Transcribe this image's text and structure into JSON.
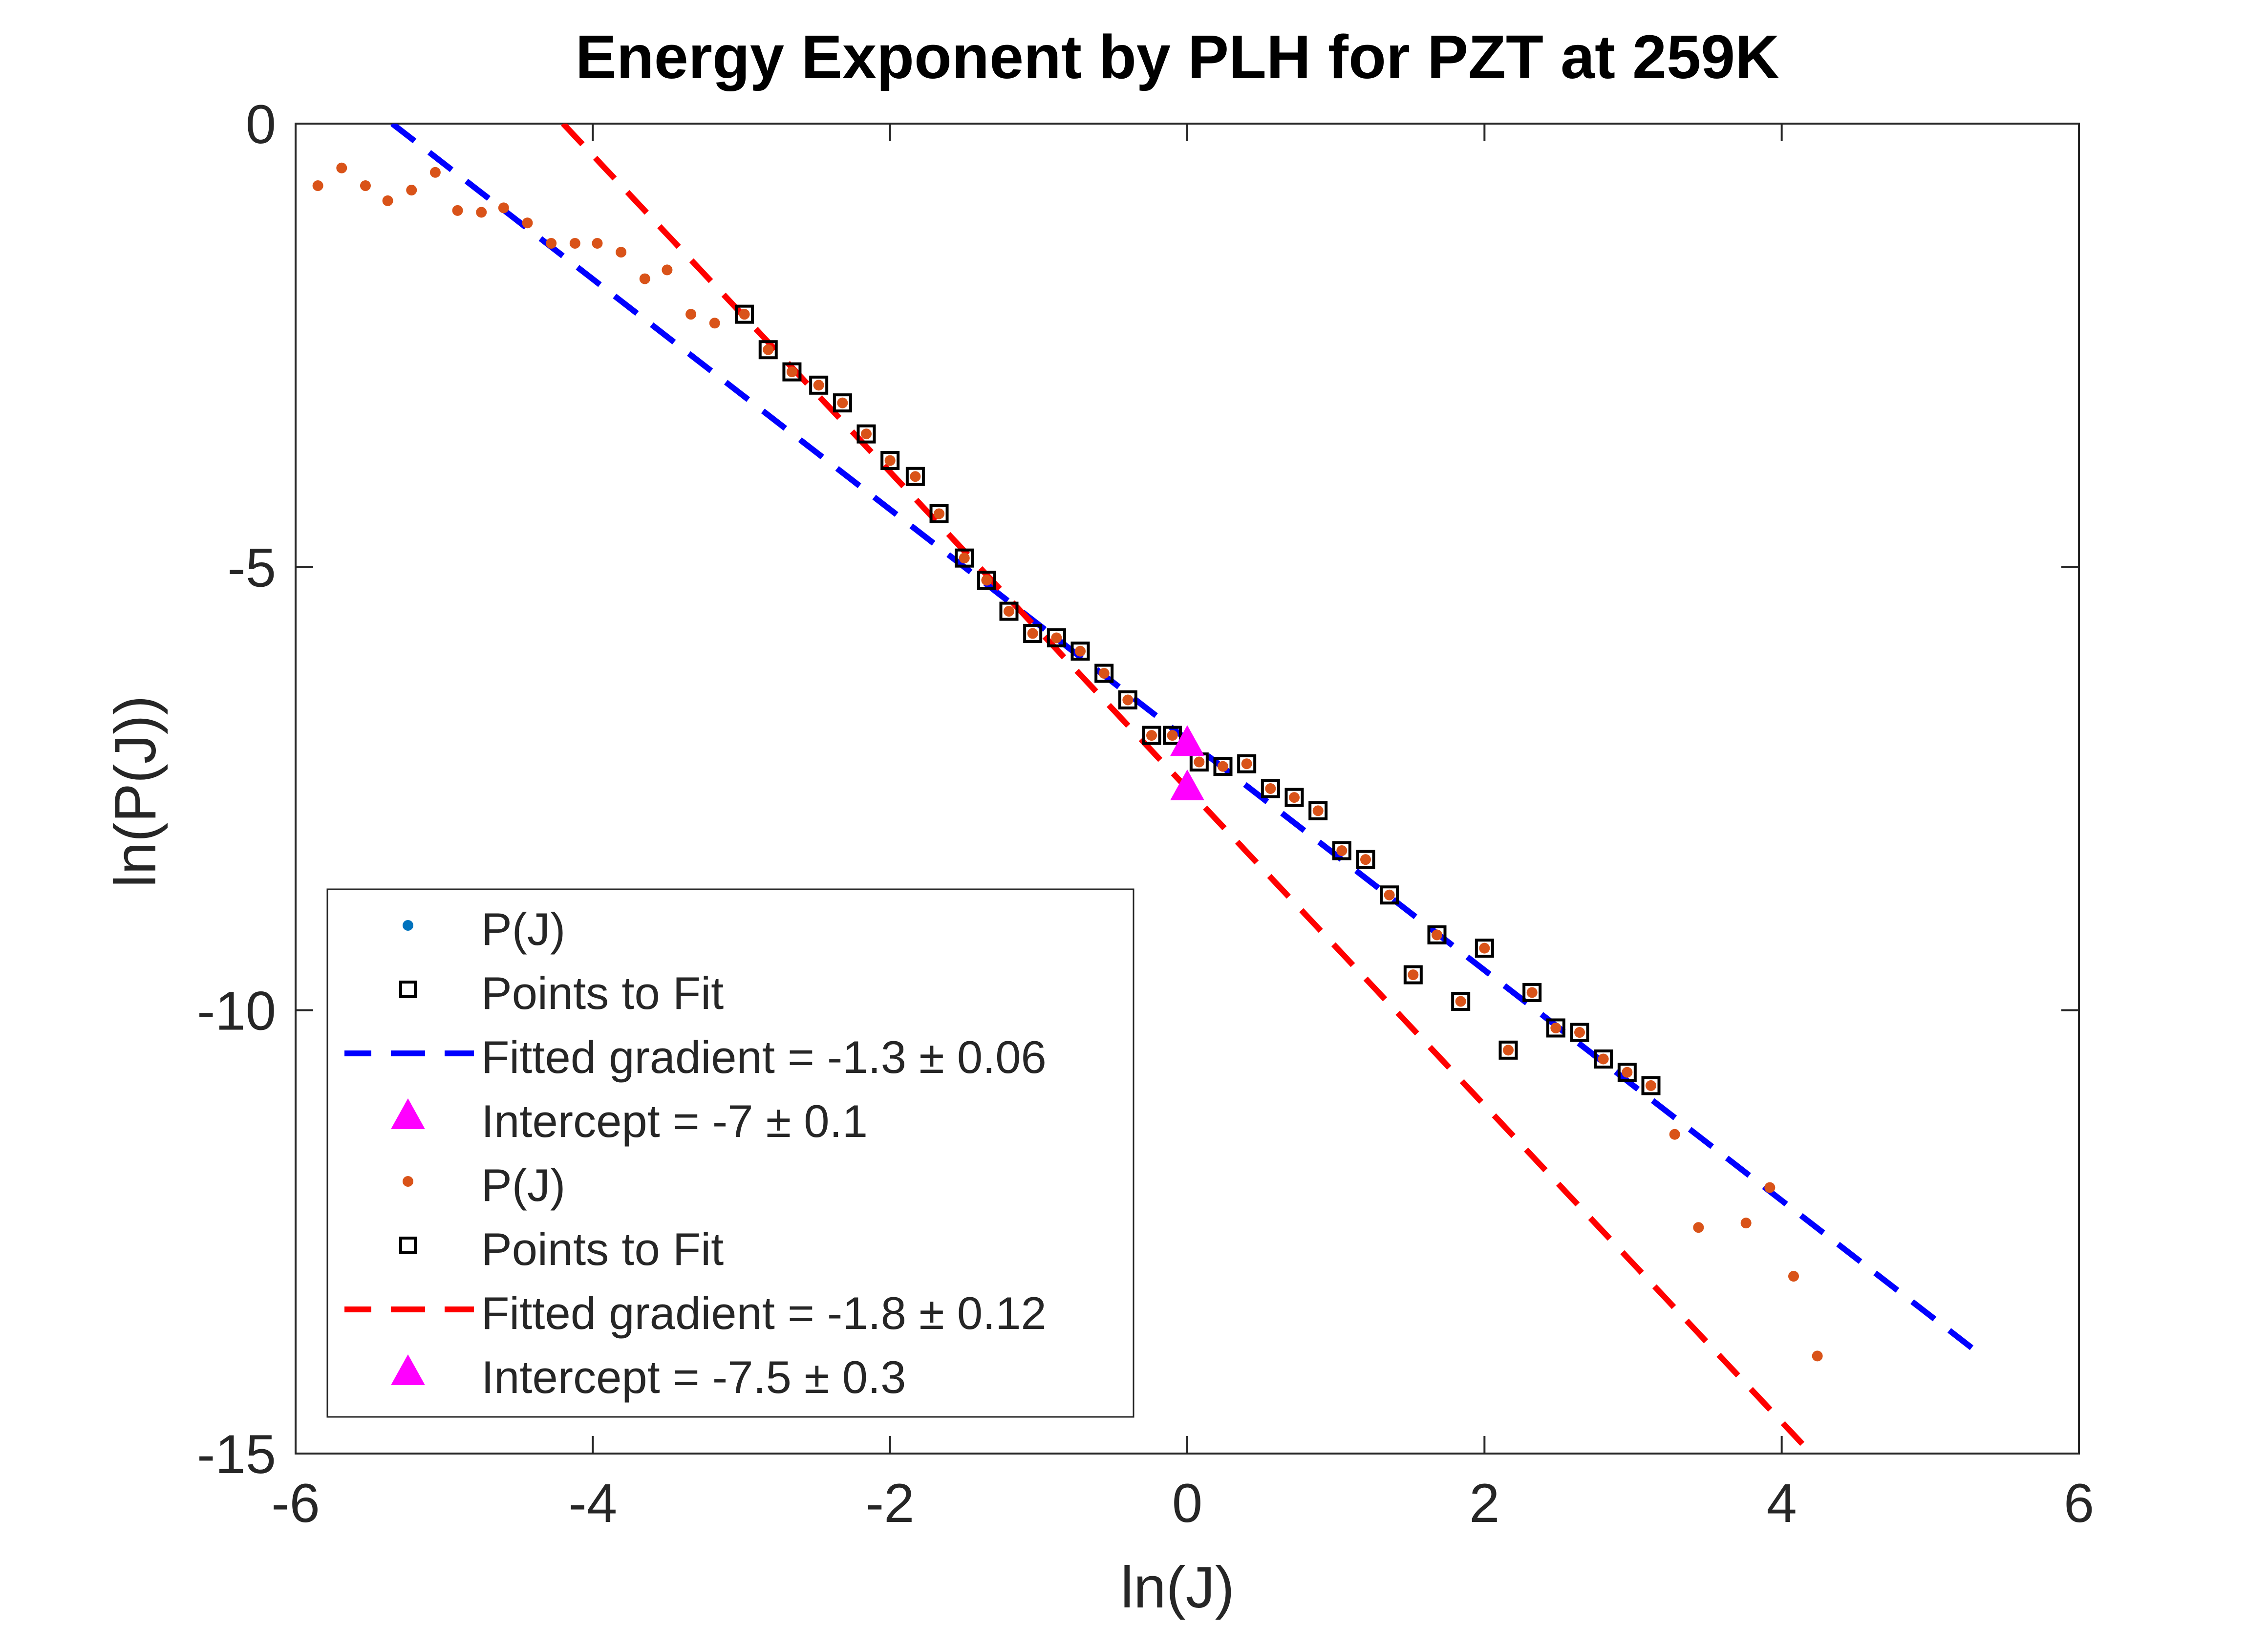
{
  "chart_data": {
    "type": "scatter",
    "title": "Energy Exponent by PLH for PZT at 259K",
    "xlabel": "ln(J)",
    "ylabel": "ln(P(J))",
    "xlim": [
      -6,
      6
    ],
    "ylim": [
      -15,
      0
    ],
    "xticks": [
      -6,
      -4,
      -2,
      0,
      2,
      4,
      6
    ],
    "yticks": [
      0,
      -5,
      -10,
      -15
    ],
    "xtick_labels": [
      "-6",
      "-4",
      "-2",
      "0",
      "2",
      "4",
      "6"
    ],
    "ytick_labels": [
      "0",
      "-5",
      "-10",
      "-15"
    ],
    "grid": false,
    "legend_position": "bottom-left",
    "colors": {
      "pj_series1": "#0072BD",
      "pj_series2": "#D95319",
      "fit_points": "#000000",
      "fit_line1": "#0000FF",
      "fit_line2": "#FF0000",
      "intercept": "#FF00FF"
    },
    "series": [
      {
        "name": "P(J)",
        "kind": "dots",
        "color": "#D95319",
        "points": [
          [
            -5.85,
            -0.7
          ],
          [
            -5.69,
            -0.5
          ],
          [
            -5.53,
            -0.7
          ],
          [
            -5.38,
            -0.87
          ],
          [
            -5.22,
            -0.75
          ],
          [
            -5.06,
            -0.55
          ],
          [
            -4.91,
            -0.98
          ],
          [
            -4.75,
            -1.0
          ],
          [
            -4.6,
            -0.95
          ],
          [
            -4.44,
            -1.12
          ],
          [
            -4.28,
            -1.35
          ],
          [
            -4.12,
            -1.35
          ],
          [
            -3.97,
            -1.35
          ],
          [
            -3.81,
            -1.45
          ],
          [
            -3.65,
            -1.75
          ],
          [
            -3.5,
            -1.65
          ],
          [
            -3.34,
            -2.15
          ],
          [
            -3.18,
            -2.25
          ],
          [
            -2.98,
            -2.15
          ],
          [
            -2.82,
            -2.55
          ],
          [
            -2.66,
            -2.8
          ],
          [
            -2.48,
            -2.95
          ],
          [
            -2.32,
            -3.15
          ],
          [
            -2.16,
            -3.5
          ],
          [
            -2.0,
            -3.8
          ],
          [
            -1.83,
            -3.98
          ],
          [
            -1.67,
            -4.4
          ],
          [
            -1.5,
            -4.9
          ],
          [
            -1.35,
            -5.15
          ],
          [
            -1.2,
            -5.5
          ],
          [
            -1.04,
            -5.75
          ],
          [
            -0.88,
            -5.8
          ],
          [
            -0.72,
            -5.95
          ],
          [
            -0.56,
            -6.2
          ],
          [
            -0.4,
            -6.5
          ],
          [
            -0.24,
            -6.9
          ],
          [
            -0.1,
            -6.9
          ],
          [
            0.08,
            -7.2
          ],
          [
            0.24,
            -7.25
          ],
          [
            0.4,
            -7.22
          ],
          [
            0.56,
            -7.5
          ],
          [
            0.72,
            -7.6
          ],
          [
            0.88,
            -7.75
          ],
          [
            1.04,
            -8.2
          ],
          [
            1.2,
            -8.3
          ],
          [
            1.36,
            -8.7
          ],
          [
            1.52,
            -9.6
          ],
          [
            1.68,
            -9.15
          ],
          [
            1.84,
            -9.9
          ],
          [
            2.0,
            -9.3
          ],
          [
            2.16,
            -10.45
          ],
          [
            2.32,
            -9.8
          ],
          [
            2.48,
            -10.2
          ],
          [
            2.64,
            -10.25
          ],
          [
            2.8,
            -10.55
          ],
          [
            2.96,
            -10.7
          ],
          [
            3.12,
            -10.85
          ],
          [
            3.28,
            -11.4
          ],
          [
            3.44,
            -12.45
          ],
          [
            3.76,
            -12.4
          ],
          [
            3.92,
            -12.0
          ],
          [
            4.08,
            -13.0
          ],
          [
            4.24,
            -13.9
          ]
        ]
      },
      {
        "name": "Points to Fit",
        "kind": "squares",
        "color": "#000000",
        "points": [
          [
            -2.98,
            -2.15
          ],
          [
            -2.82,
            -2.55
          ],
          [
            -2.66,
            -2.8
          ],
          [
            -2.48,
            -2.95
          ],
          [
            -2.32,
            -3.15
          ],
          [
            -2.16,
            -3.5
          ],
          [
            -2.0,
            -3.8
          ],
          [
            -1.83,
            -3.98
          ],
          [
            -1.67,
            -4.4
          ],
          [
            -1.5,
            -4.9
          ],
          [
            -1.35,
            -5.15
          ],
          [
            -1.2,
            -5.5
          ],
          [
            -1.04,
            -5.75
          ],
          [
            -0.88,
            -5.8
          ],
          [
            -0.72,
            -5.95
          ],
          [
            -0.56,
            -6.2
          ],
          [
            -0.4,
            -6.5
          ],
          [
            -0.24,
            -6.9
          ],
          [
            -0.1,
            -6.9
          ],
          [
            0.08,
            -7.2
          ],
          [
            0.24,
            -7.25
          ],
          [
            0.4,
            -7.22
          ],
          [
            0.56,
            -7.5
          ],
          [
            0.72,
            -7.6
          ],
          [
            0.88,
            -7.75
          ],
          [
            1.04,
            -8.2
          ],
          [
            1.2,
            -8.3
          ],
          [
            1.36,
            -8.7
          ],
          [
            1.52,
            -9.6
          ],
          [
            1.68,
            -9.15
          ],
          [
            1.84,
            -9.9
          ],
          [
            2.0,
            -9.3
          ],
          [
            2.16,
            -10.45
          ],
          [
            2.32,
            -9.8
          ],
          [
            2.48,
            -10.2
          ],
          [
            2.64,
            -10.25
          ],
          [
            2.8,
            -10.55
          ],
          [
            2.96,
            -10.7
          ],
          [
            3.12,
            -10.85
          ]
        ]
      },
      {
        "name": "Fitted gradient = -1.3 ± 0.06",
        "kind": "dashed-line",
        "color": "#0000FF",
        "points": [
          [
            -5.35,
            0.0
          ],
          [
            5.35,
            -13.9
          ]
        ]
      },
      {
        "name": "Fitted gradient = -1.8 ± 0.12",
        "kind": "dashed-line",
        "color": "#FF0000",
        "points": [
          [
            -4.2,
            0.0
          ],
          [
            4.2,
            -15.0
          ]
        ]
      },
      {
        "name": "Intercept = -7 ± 0.1",
        "kind": "triangle",
        "color": "#FF00FF",
        "points": [
          [
            0,
            -7.0
          ]
        ]
      },
      {
        "name": "Intercept = -7.5 ± 0.3",
        "kind": "triangle",
        "color": "#FF00FF",
        "points": [
          [
            0,
            -7.5
          ]
        ]
      }
    ],
    "legend": [
      {
        "label": "P(J)",
        "kind": "dot",
        "color": "#0072BD"
      },
      {
        "label": "Points to Fit",
        "kind": "square",
        "color": "#000000"
      },
      {
        "label": "Fitted gradient = -1.3 ± 0.06",
        "kind": "dash",
        "color": "#0000FF"
      },
      {
        "label": "Intercept = -7 ± 0.1",
        "kind": "triangle",
        "color": "#FF00FF"
      },
      {
        "label": "P(J)",
        "kind": "dot",
        "color": "#D95319"
      },
      {
        "label": "Points to Fit",
        "kind": "square",
        "color": "#000000"
      },
      {
        "label": "Fitted gradient = -1.8 ± 0.12",
        "kind": "dash",
        "color": "#FF0000"
      },
      {
        "label": "Intercept = -7.5 ± 0.3",
        "kind": "triangle",
        "color": "#FF00FF"
      }
    ]
  }
}
